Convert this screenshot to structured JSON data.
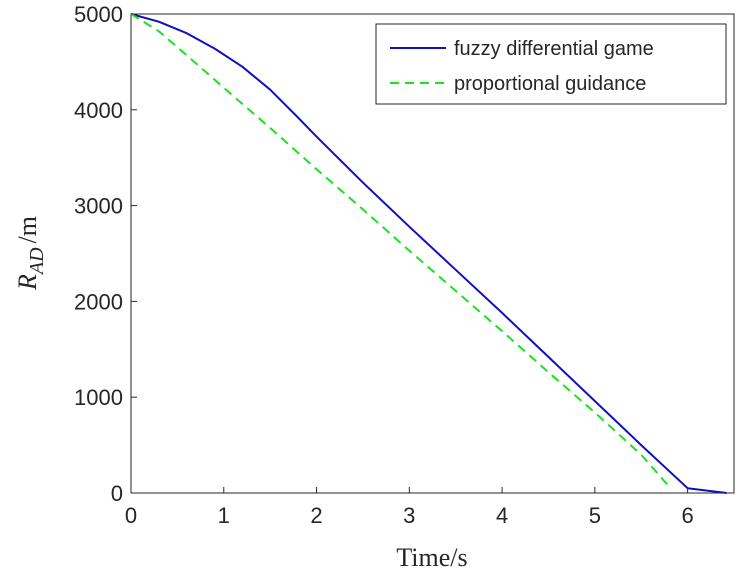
{
  "chart_data": {
    "type": "line",
    "xlabel": "Time/s",
    "ylabel": {
      "main": "R",
      "subscript": "AD",
      "unit": "/m"
    },
    "xlim": [
      0,
      6.5
    ],
    "ylim": [
      0,
      5000
    ],
    "xticks": [
      "0",
      "1",
      "2",
      "3",
      "4",
      "5",
      "6"
    ],
    "yticks": [
      "0",
      "1000",
      "2000",
      "3000",
      "4000",
      "5000"
    ],
    "legend_placement": "top-right",
    "grid": false,
    "series": [
      {
        "name": "fuzzy differential game",
        "color": "#1010c0",
        "style": "solid",
        "x": [
          0,
          0.3,
          0.6,
          0.9,
          1.2,
          1.5,
          1.8,
          2.0,
          2.5,
          3.0,
          3.5,
          4.0,
          4.5,
          5.0,
          5.5,
          6.0,
          6.42
        ],
        "y": [
          5000,
          4920,
          4800,
          4640,
          4450,
          4210,
          3920,
          3720,
          3240,
          2780,
          2330,
          1880,
          1420,
          960,
          500,
          50,
          0
        ]
      },
      {
        "name": "proportional guidance",
        "color": "#1fe01f",
        "style": "dashed",
        "x": [
          0,
          0.3,
          0.6,
          1.0,
          1.5,
          2.0,
          2.5,
          3.0,
          3.5,
          4.0,
          4.5,
          5.0,
          5.5,
          5.78
        ],
        "y": [
          5000,
          4820,
          4570,
          4230,
          3810,
          3380,
          2960,
          2530,
          2110,
          1690,
          1260,
          840,
          400,
          90
        ]
      }
    ]
  }
}
